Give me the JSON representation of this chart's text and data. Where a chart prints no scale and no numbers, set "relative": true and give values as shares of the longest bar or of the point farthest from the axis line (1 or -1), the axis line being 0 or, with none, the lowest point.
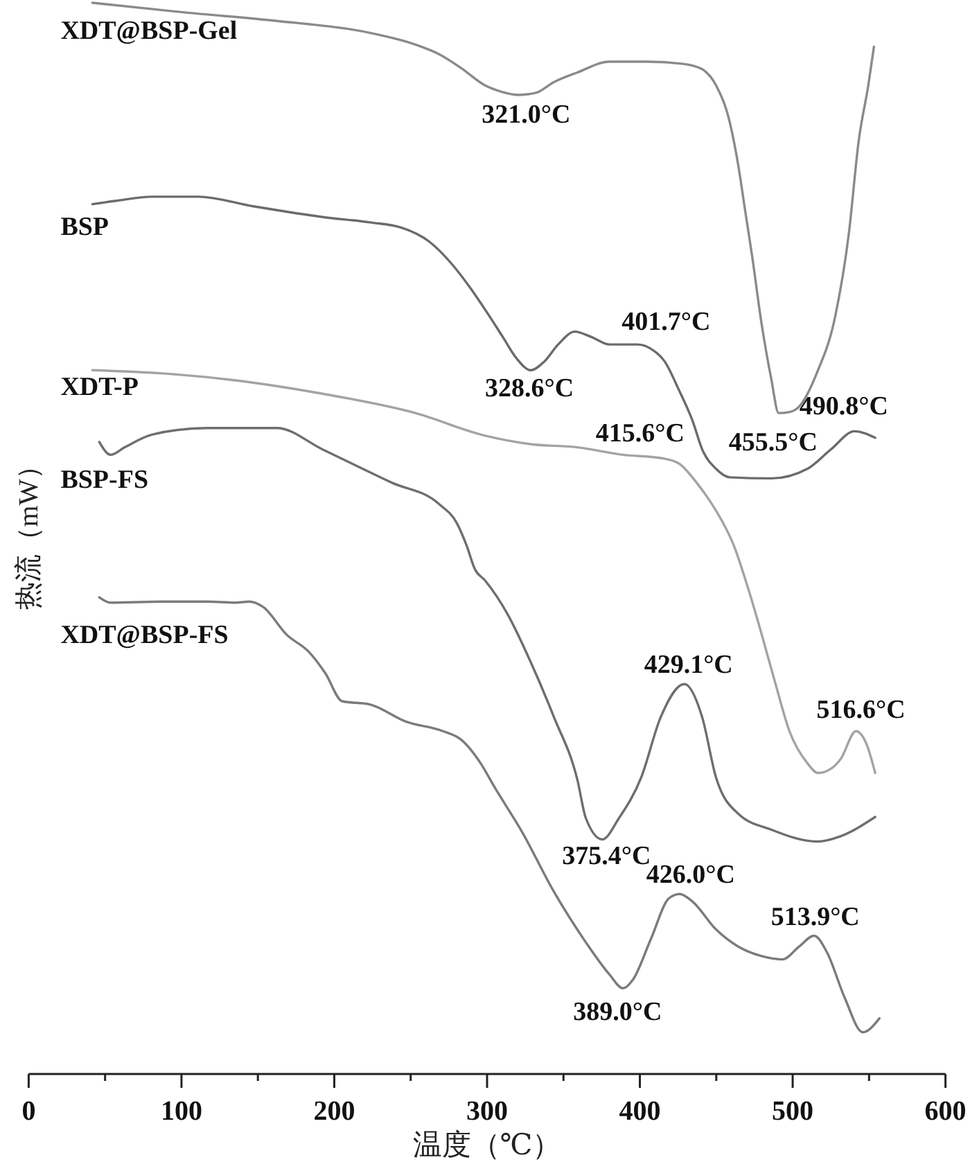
{
  "chart_data": {
    "type": "line",
    "xlabel": "温度（℃）",
    "ylabel": "热流（mW）",
    "relative": true,
    "tick_labels": "x",
    "xlim": [
      0,
      600
    ],
    "xticks": [
      0,
      {
        "value": 50,
        "label": null
      },
      100,
      {
        "value": 150,
        "label": null
      },
      200,
      {
        "value": 250,
        "label": null
      },
      300,
      {
        "value": 350,
        "label": null
      },
      400,
      {
        "value": 450,
        "label": null
      },
      500,
      {
        "value": 550,
        "label": null
      },
      600
    ],
    "series": [
      {
        "name": "XDT@BSP-Gel",
        "color": "#8a8a8a",
        "x": [
          41.7,
          101.8,
          162.5,
          223.2,
          253.1,
          268.6,
          283.1,
          298.5,
          309.3,
          321.0,
          332.0,
          343.8,
          359.2,
          380.1,
          404.5,
          428.1,
          440.7,
          449.8,
          458.9,
          464.3,
          468.9,
          473.4,
          479.8,
          486.1,
          490.8,
          498.0,
          504.2,
          516.0,
          527.8,
          536.8,
          543.2,
          549.5,
          553.2
        ],
        "values": [
          1.0,
          0.991,
          0.983,
          0.972,
          0.961,
          0.952,
          0.939,
          0.923,
          0.917,
          0.914,
          0.916,
          0.926,
          0.935,
          0.945,
          0.945,
          0.943,
          0.938,
          0.923,
          0.888,
          0.849,
          0.806,
          0.764,
          0.699,
          0.648,
          0.617,
          0.618,
          0.623,
          0.655,
          0.707,
          0.785,
          0.871,
          0.923,
          0.959
        ]
      },
      {
        "name": "BSP",
        "color": "#6b6b6b",
        "x": [
          41.7,
          56.5,
          80.9,
          110.8,
          147.1,
          192.4,
          223.2,
          244.1,
          262.2,
          277.6,
          289.4,
          298.5,
          310.3,
          319.3,
          328.6,
          337.4,
          346.5,
          357.4,
          368.3,
          380.0,
          398.2,
          407.2,
          416.3,
          425.4,
          434.4,
          440.8,
          449.8,
          458.9,
          486.1,
          509.7,
          525.0,
          540.5,
          554.0
        ],
        "values": [
          0.812,
          0.815,
          0.819,
          0.819,
          0.81,
          0.8,
          0.795,
          0.79,
          0.777,
          0.755,
          0.733,
          0.714,
          0.688,
          0.668,
          0.657,
          0.665,
          0.681,
          0.693,
          0.688,
          0.681,
          0.681,
          0.677,
          0.665,
          0.639,
          0.61,
          0.583,
          0.565,
          0.557,
          0.556,
          0.565,
          0.583,
          0.6,
          0.594
        ]
      },
      {
        "name": "XDT-P",
        "color": "#a3a3a3",
        "x": [
          41.7,
          87.3,
          132.6,
          192.4,
          253.1,
          298.5,
          328.4,
          359.2,
          389.1,
          413.6,
          425.4,
          437.1,
          449.8,
          461.6,
          470.7,
          479.8,
          488.8,
          497.9,
          509.7,
          516.6,
          525.1,
          531.4,
          541.4,
          548.6,
          554.0
        ],
        "values": [
          0.657,
          0.654,
          0.648,
          0.635,
          0.617,
          0.596,
          0.588,
          0.585,
          0.578,
          0.575,
          0.57,
          0.552,
          0.526,
          0.493,
          0.454,
          0.41,
          0.364,
          0.32,
          0.29,
          0.281,
          0.285,
          0.294,
          0.32,
          0.307,
          0.281
        ]
      },
      {
        "name": "BSP-FS",
        "color": "#6e6e6e",
        "x": [
          46.2,
          53.7,
          62.8,
          80.9,
          117.2,
          162.5,
          192.4,
          237.7,
          268.6,
          280.3,
          286.7,
          292.1,
          298.5,
          313.9,
          328.4,
          343.8,
          359.2,
          364.6,
          375.4,
          386.4,
          400.9,
          413.6,
          429.1,
          440.8,
          449.8,
          464.3,
          486.1,
          516.0,
          531.4,
          554.0
        ],
        "values": [
          0.59,
          0.578,
          0.585,
          0.597,
          0.603,
          0.603,
          0.583,
          0.552,
          0.532,
          0.514,
          0.493,
          0.471,
          0.461,
          0.428,
          0.385,
          0.333,
          0.274,
          0.239,
          0.219,
          0.239,
          0.277,
          0.333,
          0.364,
          0.333,
          0.277,
          0.243,
          0.228,
          0.217,
          0.222,
          0.24
        ]
      },
      {
        "name": "XDT@BSP-FS",
        "color": "#7b7b7b",
        "x": [
          46.2,
          53.7,
          87.3,
          117.2,
          135.3,
          144.4,
          153.4,
          168.9,
          183.4,
          194.2,
          205.1,
          223.2,
          246.8,
          271.2,
          283.1,
          295.8,
          304.8,
          322.9,
          343.8,
          364.6,
          380.0,
          389.0,
          395.4,
          407.2,
          419.0,
          426.0,
          434.4,
          449.8,
          464.3,
          479.8,
          493.4,
          504.2,
          514.0,
          522.3,
          534.1,
          545.9,
          556.8
        ],
        "values": [
          0.445,
          0.44,
          0.441,
          0.441,
          0.44,
          0.441,
          0.436,
          0.41,
          0.394,
          0.374,
          0.348,
          0.345,
          0.329,
          0.32,
          0.312,
          0.29,
          0.268,
          0.226,
          0.17,
          0.123,
          0.093,
          0.08,
          0.088,
          0.126,
          0.164,
          0.168,
          0.161,
          0.135,
          0.119,
          0.11,
          0.107,
          0.119,
          0.129,
          0.114,
          0.071,
          0.039,
          0.052
        ]
      }
    ],
    "annotations": [
      {
        "text": "321.0°C",
        "x": 321.0,
        "y": 0.914
      },
      {
        "text": "328.6°C",
        "x": 328.6,
        "y": 0.657
      },
      {
        "text": "401.7°C",
        "x": 401.7,
        "y": 0.679
      },
      {
        "text": "490.8°C",
        "x": 490.8,
        "y": 0.617
      },
      {
        "text": "415.6°C",
        "x": 415.6,
        "y": 0.575
      },
      {
        "text": "455.5°C",
        "x": 455.5,
        "y": 0.56
      },
      {
        "text": "516.6°C",
        "x": 516.6,
        "y": 0.281
      },
      {
        "text": "429.1°C",
        "x": 429.1,
        "y": 0.364
      },
      {
        "text": "375.4°C",
        "x": 375.4,
        "y": 0.219
      },
      {
        "text": "426.0°C",
        "x": 426.0,
        "y": 0.168
      },
      {
        "text": "513.9°C",
        "x": 513.9,
        "y": 0.129
      },
      {
        "text": "389.0°C",
        "x": 389.0,
        "y": 0.08
      }
    ]
  }
}
